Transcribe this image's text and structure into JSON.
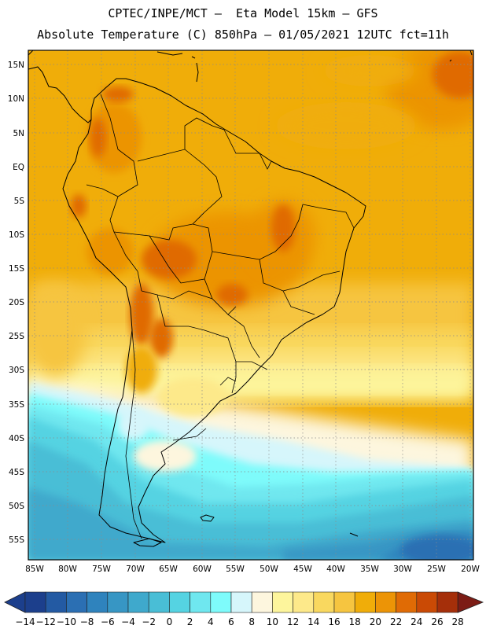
{
  "header": {
    "line1": "CPTEC/INPE/MCT –  Eta Model 15km – GFS",
    "line2": "Absolute Temperature (C) 850hPa – 01/05/2021 12UTC fct=11h"
  },
  "map": {
    "lat_labels": [
      "15N",
      "10N",
      "5N",
      "EQ",
      "5S",
      "10S",
      "15S",
      "20S",
      "25S",
      "30S",
      "35S",
      "40S",
      "45S",
      "50S",
      "55S"
    ],
    "lon_labels": [
      "85W",
      "80W",
      "75W",
      "70W",
      "65W",
      "60W",
      "55W",
      "50W",
      "45W",
      "40W",
      "35W",
      "30W",
      "25W",
      "20W"
    ],
    "variable": "Absolute Temperature (C) 850hPa",
    "region": "South America"
  },
  "colorbar": {
    "labels": [
      "-14",
      "-12",
      "-10",
      "-8",
      "-6",
      "-4",
      "-2",
      "0",
      "2",
      "4",
      "6",
      "8",
      "10",
      "12",
      "14",
      "16",
      "18",
      "20",
      "22",
      "24",
      "26",
      "28"
    ],
    "colors": [
      "#1c3f8c",
      "#235aa3",
      "#2b6fb3",
      "#2f83bd",
      "#3796c4",
      "#3fa9cc",
      "#49bed6",
      "#55d3e2",
      "#6fe7ef",
      "#7efbfb",
      "#d6f6fb",
      "#fdf6de",
      "#fdf59c",
      "#fde98a",
      "#f9d85f",
      "#f6c540",
      "#f0ad09",
      "#ec9406",
      "#e06b05",
      "#ca4a05",
      "#a52f0a",
      "#7c1c15"
    ]
  }
}
